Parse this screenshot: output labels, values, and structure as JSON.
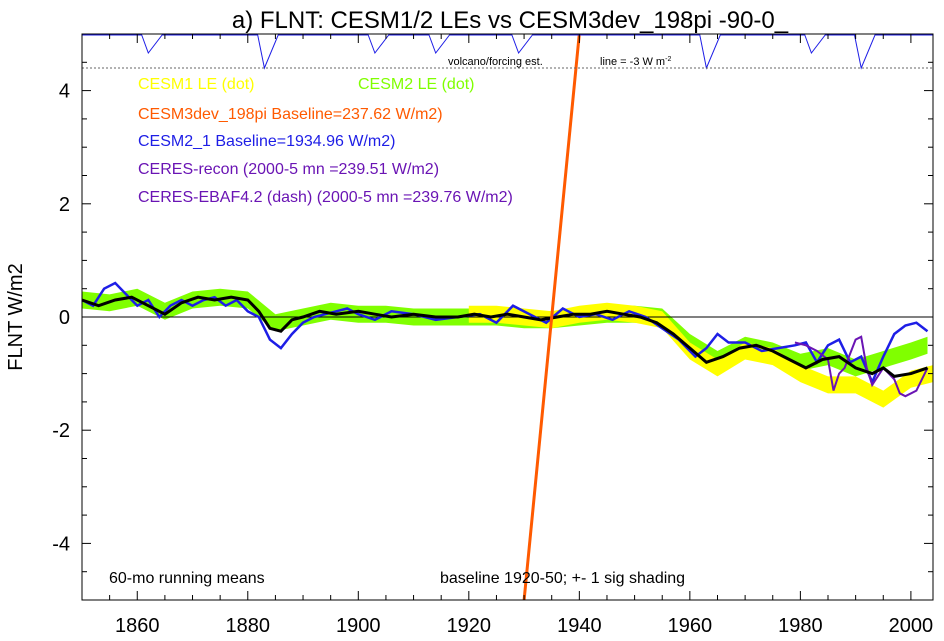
{
  "chart_data": {
    "type": "line",
    "title": "a) FLNT: CESM1/2 LEs vs CESM3dev_198pi -90-0_",
    "xlabel": "",
    "ylabel": "FLNT W/m2",
    "xlim": [
      1850,
      2004
    ],
    "ylim": [
      -5,
      5
    ],
    "x_ticks": [
      1860,
      1880,
      1900,
      1920,
      1940,
      1960,
      1980,
      2000
    ],
    "y_ticks": [
      -4,
      -2,
      0,
      2,
      4
    ],
    "grid": false,
    "annotations": {
      "volcano": "volcano/forcing est.",
      "line_ref": "line = -3 W m",
      "line_ref_sup": "-2",
      "running_means": "60-mo running means",
      "baseline_note": "baseline 1920-50; +- 1 sig shading"
    },
    "legend": [
      {
        "text": "CESM1 LE (dot)",
        "color": "#ffff00"
      },
      {
        "text": "CESM2 LE (dot)",
        "color": "#80ff00"
      },
      {
        "text": "CESM3dev_198pi Baseline=237.62 W/m2)",
        "color": "#ff5a00"
      },
      {
        "text": "CESM2_1 Baseline=1934.96 W/m2)",
        "color": "#1e1ee6"
      },
      {
        "text": "CERES-recon (2000-5 mn =239.51 W/m2)",
        "color": "#6a14b4"
      },
      {
        "text": "CERES-EBAF4.2 (dash) (2000-5 mn =239.76 W/m2)",
        "color": "#6a14b4"
      }
    ],
    "colors": {
      "cesm1": "#ffff00",
      "cesm2": "#80ff00",
      "cesm3dev": "#ff5a00",
      "cesm2_1": "#1e1ee6",
      "ceres": "#6a14b4",
      "mean": "#000000",
      "volcano": "#1e1ee6"
    },
    "series": [
      {
        "name": "CESM2 LE (dot)",
        "x": [
          1850,
          1855,
          1860,
          1865,
          1870,
          1875,
          1880,
          1885,
          1890,
          1895,
          1900,
          1905,
          1910,
          1915,
          1920,
          1925,
          1930,
          1935,
          1940,
          1945,
          1950,
          1955,
          1960,
          1965,
          1970,
          1975,
          1980,
          1985,
          1990,
          1995,
          2000,
          2003
        ],
        "values": [
          0.3,
          0.25,
          0.35,
          0.1,
          0.3,
          0.35,
          0.3,
          -0.1,
          0.0,
          0.1,
          0.05,
          0.05,
          0.0,
          0.0,
          0.0,
          0.0,
          -0.05,
          -0.05,
          0.0,
          0.05,
          0.05,
          0.0,
          -0.45,
          -0.75,
          -0.5,
          -0.6,
          -0.8,
          -0.7,
          -0.9,
          -0.75,
          -0.6,
          -0.5
        ],
        "spread": 0.15
      },
      {
        "name": "CESM1 LE (dot)",
        "x": [
          1920,
          1925,
          1930,
          1935,
          1940,
          1945,
          1950,
          1955,
          1960,
          1965,
          1970,
          1975,
          1980,
          1985,
          1990,
          1995,
          2000,
          2004
        ],
        "values": [
          0.05,
          0.05,
          0.0,
          -0.05,
          0.05,
          0.1,
          0.05,
          -0.05,
          -0.6,
          -0.9,
          -0.6,
          -0.7,
          -1.0,
          -1.2,
          -1.2,
          -1.45,
          -1.1,
          -1.0
        ],
        "spread": 0.15
      },
      {
        "name": "CESM2_1 Baseline=1934.96 W/m2)",
        "x": [
          1850,
          1852,
          1854,
          1856,
          1858,
          1860,
          1862,
          1864,
          1866,
          1868,
          1870,
          1872,
          1874,
          1876,
          1878,
          1880,
          1882,
          1884,
          1886,
          1888,
          1890,
          1892,
          1894,
          1896,
          1898,
          1900,
          1903,
          1906,
          1910,
          1914,
          1918,
          1922,
          1925,
          1928,
          1931,
          1934,
          1937,
          1940,
          1943,
          1946,
          1949,
          1952,
          1955,
          1958,
          1961,
          1963,
          1965,
          1967,
          1970,
          1973,
          1976,
          1979,
          1981,
          1983,
          1985,
          1987,
          1989,
          1991,
          1993,
          1995,
          1997,
          1999,
          2001,
          2003
        ],
        "values": [
          0.3,
          0.2,
          0.5,
          0.6,
          0.4,
          0.2,
          0.3,
          0.0,
          0.2,
          0.3,
          0.2,
          0.3,
          0.35,
          0.2,
          0.3,
          0.1,
          0.0,
          -0.4,
          -0.55,
          -0.3,
          -0.1,
          0.0,
          0.05,
          0.1,
          0.15,
          0.05,
          -0.05,
          0.1,
          0.05,
          -0.05,
          0.0,
          0.05,
          -0.1,
          0.2,
          0.05,
          -0.1,
          0.15,
          0.0,
          0.05,
          -0.05,
          0.1,
          0.0,
          -0.2,
          -0.4,
          -0.7,
          -0.55,
          -0.3,
          -0.45,
          -0.45,
          -0.6,
          -0.55,
          -0.5,
          -0.45,
          -0.8,
          -0.5,
          -0.4,
          -0.8,
          -0.7,
          -1.15,
          -0.7,
          -0.3,
          -0.15,
          -0.1,
          -0.25
        ]
      },
      {
        "name": "CERES-recon (2000-5 mn =239.51 W/m2)",
        "x": [
          1979,
          1981,
          1983,
          1985,
          1986,
          1987,
          1988,
          1990,
          1991,
          1992,
          1993,
          1995,
          1997,
          1998,
          1999,
          2001,
          2003
        ],
        "values": [
          -0.45,
          -0.5,
          -0.6,
          -0.75,
          -1.3,
          -1.0,
          -0.9,
          -0.4,
          -0.35,
          -0.9,
          -1.2,
          -0.9,
          -1.1,
          -1.35,
          -1.4,
          -1.3,
          -0.9
        ]
      },
      {
        "name": "Ensemble mean",
        "x": [
          1850,
          1853,
          1856,
          1859,
          1862,
          1865,
          1868,
          1871,
          1874,
          1877,
          1880,
          1882,
          1884,
          1886,
          1888,
          1890,
          1893,
          1896,
          1900,
          1903,
          1906,
          1910,
          1914,
          1918,
          1921,
          1924,
          1927,
          1930,
          1933,
          1936,
          1939,
          1942,
          1945,
          1948,
          1951,
          1954,
          1957,
          1960,
          1963,
          1966,
          1969,
          1972,
          1975,
          1978,
          1981,
          1984,
          1987,
          1990,
          1993,
          1995,
          1997,
          2000,
          2003
        ],
        "values": [
          0.3,
          0.2,
          0.3,
          0.35,
          0.2,
          0.05,
          0.25,
          0.35,
          0.3,
          0.35,
          0.3,
          0.1,
          -0.2,
          -0.25,
          -0.05,
          0.0,
          0.1,
          0.05,
          0.1,
          0.05,
          0.0,
          0.05,
          0.0,
          0.0,
          0.05,
          0.0,
          0.05,
          0.0,
          -0.05,
          0.0,
          0.05,
          0.05,
          0.1,
          0.05,
          0.0,
          -0.1,
          -0.3,
          -0.55,
          -0.8,
          -0.7,
          -0.55,
          -0.5,
          -0.6,
          -0.75,
          -0.9,
          -0.75,
          -0.7,
          -0.9,
          -1.0,
          -0.9,
          -1.05,
          -1.0,
          -0.9
        ]
      },
      {
        "name": "CESM3dev_198pi Baseline=237.62 W/m2)",
        "x": [
          1930,
          1940
        ],
        "values": [
          -5,
          5
        ]
      }
    ],
    "volcano_events": [
      1862,
      1883,
      1903,
      1914,
      1929,
      1963,
      1982,
      1991
    ]
  }
}
